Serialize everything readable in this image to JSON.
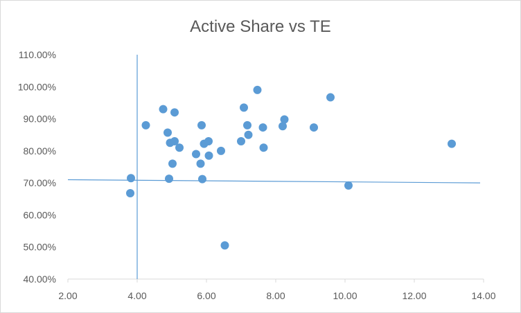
{
  "chart_data": {
    "type": "scatter",
    "title": "Active Share vs TE",
    "xlabel": "",
    "ylabel": "",
    "xlim": [
      2,
      14
    ],
    "ylim": [
      0.4,
      1.1
    ],
    "x_ticks": [
      2,
      4,
      6,
      8,
      10,
      12,
      14
    ],
    "x_tick_labels": [
      "2.00",
      "4.00",
      "6.00",
      "8.00",
      "10.00",
      "12.00",
      "14.00"
    ],
    "y_ticks": [
      0.4,
      0.5,
      0.6,
      0.7,
      0.8,
      0.9,
      1.0,
      1.1
    ],
    "y_tick_labels": [
      "40.00%",
      "50.00%",
      "60.00%",
      "70.00%",
      "80.00%",
      "90.00%",
      "100.00%",
      "110.00%"
    ],
    "grid": false,
    "legend": "none",
    "marker_color": "#5b9bd5",
    "line_color": "#5b9bd5",
    "axis_color": "#d9d9d9",
    "text_color": "#595959",
    "reference_lines": [
      {
        "type": "vertical",
        "x": 4.0,
        "y_from": 1.1,
        "y_to": 0.4
      },
      {
        "type": "segment",
        "x1": 2.0,
        "y1": 0.71,
        "x2": 13.9,
        "y2": 0.7
      }
    ],
    "points": [
      {
        "x": 3.82,
        "y": 0.715
      },
      {
        "x": 3.8,
        "y": 0.668
      },
      {
        "x": 4.25,
        "y": 0.88
      },
      {
        "x": 4.75,
        "y": 0.93
      },
      {
        "x": 4.88,
        "y": 0.857
      },
      {
        "x": 4.95,
        "y": 0.825
      },
      {
        "x": 4.92,
        "y": 0.713
      },
      {
        "x": 5.02,
        "y": 0.76
      },
      {
        "x": 5.08,
        "y": 0.83
      },
      {
        "x": 5.08,
        "y": 0.92
      },
      {
        "x": 5.22,
        "y": 0.81
      },
      {
        "x": 5.7,
        "y": 0.79
      },
      {
        "x": 5.83,
        "y": 0.76
      },
      {
        "x": 5.86,
        "y": 0.88
      },
      {
        "x": 5.88,
        "y": 0.712
      },
      {
        "x": 5.93,
        "y": 0.822
      },
      {
        "x": 6.06,
        "y": 0.83
      },
      {
        "x": 6.07,
        "y": 0.785
      },
      {
        "x": 6.42,
        "y": 0.8
      },
      {
        "x": 6.53,
        "y": 0.505
      },
      {
        "x": 7.0,
        "y": 0.83
      },
      {
        "x": 7.08,
        "y": 0.935
      },
      {
        "x": 7.18,
        "y": 0.88
      },
      {
        "x": 7.21,
        "y": 0.85
      },
      {
        "x": 7.47,
        "y": 0.99
      },
      {
        "x": 7.63,
        "y": 0.873
      },
      {
        "x": 7.65,
        "y": 0.81
      },
      {
        "x": 8.2,
        "y": 0.877
      },
      {
        "x": 8.25,
        "y": 0.898
      },
      {
        "x": 9.1,
        "y": 0.873
      },
      {
        "x": 9.58,
        "y": 0.967
      },
      {
        "x": 10.1,
        "y": 0.692
      },
      {
        "x": 13.08,
        "y": 0.822
      }
    ]
  }
}
